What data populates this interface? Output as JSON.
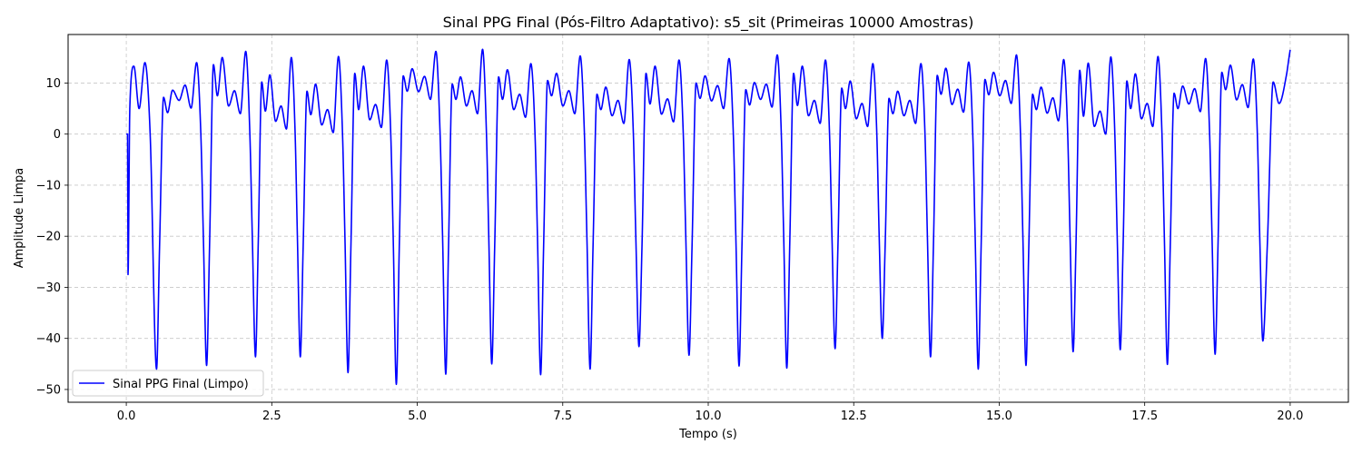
{
  "chart_data": {
    "type": "line",
    "title": "Sinal PPG Final (Pós-Filtro Adaptativo): s5_sit (Primeiras 10000 Amostras)",
    "xlabel": "Tempo (s)",
    "ylabel": "Amplitude Limpa",
    "xlim": [
      -1.0,
      21.0
    ],
    "ylim": [
      -52.5,
      19.5
    ],
    "xticks": [
      0.0,
      2.5,
      5.0,
      7.5,
      10.0,
      12.5,
      15.0,
      17.5,
      20.0
    ],
    "xtick_labels": [
      "0.0",
      "2.5",
      "5.0",
      "7.5",
      "10.0",
      "12.5",
      "15.0",
      "17.5",
      "20.0"
    ],
    "yticks": [
      10,
      0,
      -10,
      -20,
      -30,
      -40,
      -50
    ],
    "ytick_labels": [
      "10",
      "0",
      "−10",
      "−20",
      "−30",
      "−40",
      "−50"
    ],
    "grid": true,
    "legend_position": "lower-left",
    "series": [
      {
        "name": "Sinal PPG Final (Limpo)",
        "color": "#0000ff",
        "beat_times": [
          0.52,
          1.38,
          2.22,
          2.99,
          3.81,
          4.64,
          5.49,
          6.28,
          7.12,
          7.97,
          8.81,
          9.67,
          10.53,
          11.35,
          12.18,
          12.99,
          13.82,
          14.64,
          15.46,
          16.27,
          17.08,
          17.89,
          18.71,
          19.53
        ],
        "beat_minima": [
          -46,
          -45.3,
          -43.6,
          -43.6,
          -46.7,
          -49,
          -47,
          -45,
          -47.1,
          -46,
          -41.6,
          -43.3,
          -45.4,
          -45.8,
          -42,
          -40,
          -43.6,
          -46,
          -45.3,
          -42.6,
          -42.2,
          -45.1,
          -43.1,
          -40.5
        ],
        "beat_peaks": [
          14,
          16.2,
          15,
          15.2,
          14.5,
          16.2,
          16.6,
          13.8,
          15.3,
          14.6,
          14.5,
          14.8,
          15.5,
          14.5,
          13.8,
          13.8,
          14.1,
          15.5,
          14.6,
          15.1,
          15.2,
          14.8,
          14.7,
          15.0
        ],
        "beat_dicrotic": [
          5.1,
          4.0,
          1.0,
          0.3,
          1.3,
          6.8,
          4.0,
          3.3,
          4.0,
          2.1,
          2.4,
          5.0,
          5.3,
          2.1,
          1.5,
          2.1,
          4.3,
          6.0,
          2.6,
          0.0,
          1.5,
          4.4,
          5.2,
          2.5
        ],
        "initial_dip": -27.5,
        "initial_dip_time": 0.03,
        "end_value": 16.5,
        "sample_count": 10000,
        "duration": 20.0
      }
    ]
  }
}
